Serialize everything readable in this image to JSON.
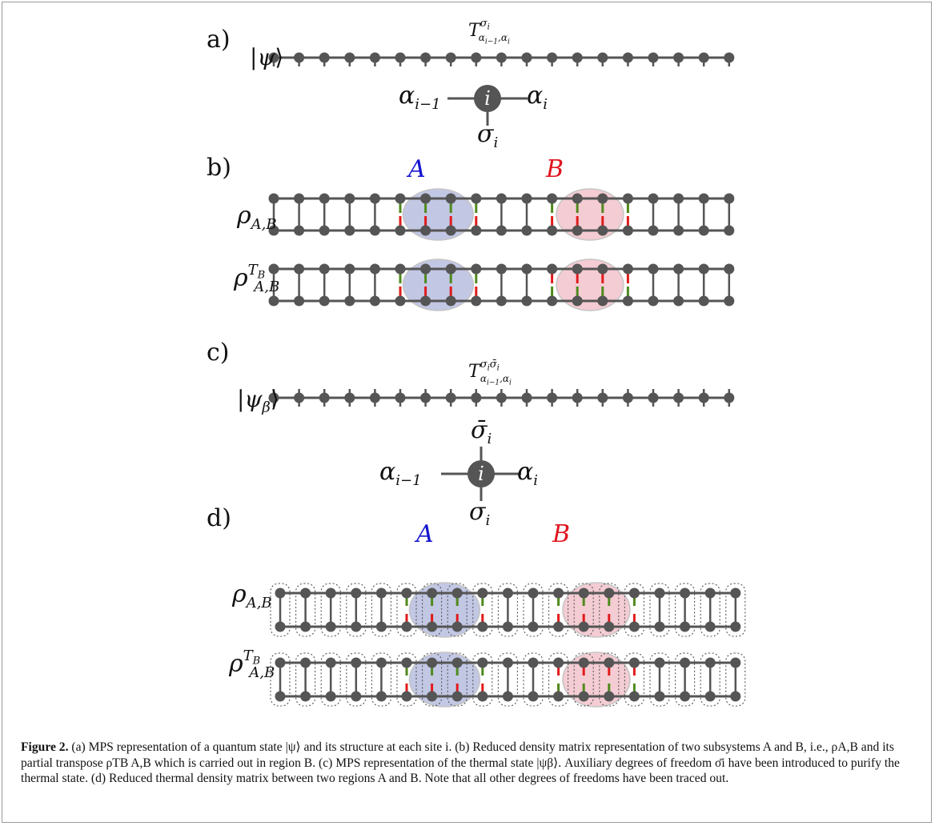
{
  "figure": {
    "panels": [
      "a)",
      "b)",
      "c)",
      "d)"
    ],
    "labels": {
      "psi": "|ψ⟩",
      "psi_beta": "|ψβ⟩",
      "T_a": "Tσi αi−1,αi",
      "T_c": "Tσiσ̄i αi−1,αi",
      "alpha_prev": "αi−1",
      "alpha_i": "αi",
      "sigma_i": "σi",
      "sigma_bar_i": "σ̄i",
      "site_i": "i",
      "region_A": "A",
      "region_B": "B",
      "rho": "ρA,B",
      "rho_TB": "ρTB A,B"
    },
    "colors": {
      "node": "#555555",
      "region_A_fill": "#b8bee0",
      "region_B_fill": "#f3c4cc",
      "region_A_text": "#1515d0",
      "region_B_text": "#e0151f",
      "green_leg": "#4f8a1c",
      "red_leg": "#e11b1b"
    }
  },
  "caption": {
    "figure_label": "Figure 2.",
    "text": "(a) MPS representation of a quantum state |ψ⟩ and its structure at each site i. (b) Reduced density matrix representation of two subsystems A and B, i.e., ρA,B and its partial transpose ρTB A,B which is carried out in region B. (c) MPS representation of the thermal state |ψβ⟩. Auxiliary degrees of freedom σ̄i have been introduced to purify the thermal state. (d) Reduced thermal density matrix between two regions A and B. Note that all other degrees of freedoms have been traced out."
  }
}
